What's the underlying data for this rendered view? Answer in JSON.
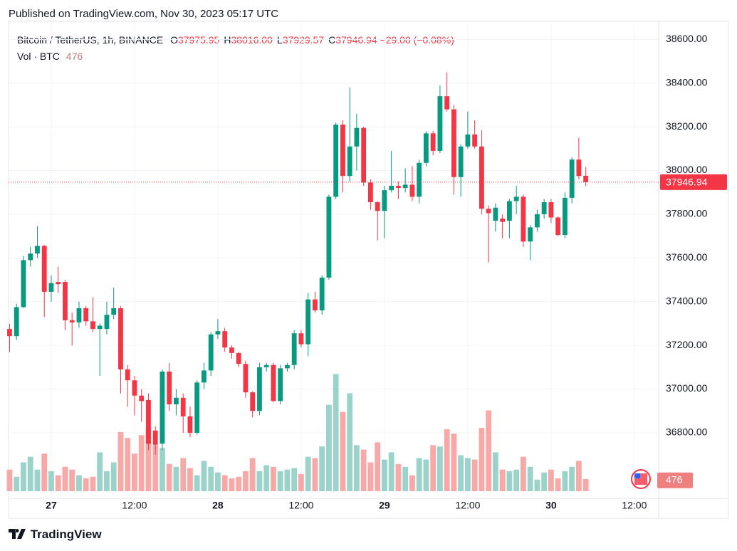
{
  "header": {
    "published": "Published on TradingView.com, Nov 30, 2023 05:17 UTC",
    "brand": "TradingView"
  },
  "chart_data": {
    "type": "candlestick",
    "symbol": "Bitcoin / TetherUS, 1h, BINANCE",
    "ohlc_legend": [
      {
        "label": "O",
        "value": "37975.95"
      },
      {
        "label": "H",
        "value": "38016.00"
      },
      {
        "label": "L",
        "value": "37929.57"
      },
      {
        "label": "C",
        "value": "37946.94"
      }
    ],
    "change": "−29.00 (−0.08%)",
    "volume_legend": {
      "label": "Vol · BTC",
      "value": "476"
    },
    "last_price": 37946.94,
    "last_price_label": "37946.94",
    "last_volume_label": "476",
    "up_color": "#089981",
    "down_color": "#f23645",
    "volume_up_color": "#9bd3ca",
    "volume_down_color": "#f7a9a8",
    "open": [
      37275,
      37242,
      37375,
      37590,
      37620,
      37655,
      37445,
      37490,
      37490,
      37315,
      37305,
      37370,
      37310,
      37275,
      37275,
      37340,
      37370,
      37090,
      37040,
      36970,
      36950,
      36810,
      36750,
      37080,
      36930,
      36960,
      36875,
      36800,
      37030,
      37085,
      37250,
      37265,
      37190,
      37165,
      37115,
      36985,
      36900,
      37100,
      37110,
      36945,
      37095,
      37110,
      37255,
      37205,
      37410,
      37360,
      37510,
      37880,
      38210,
      37975,
      38110,
      38195,
      37945,
      37855,
      37815,
      37910,
      37930,
      37920,
      37935,
      37880,
      38035,
      38170,
      38090,
      38340,
      38280,
      37970,
      38110,
      38165,
      38110,
      37825,
      37770,
      37780,
      37770,
      37860,
      37880,
      37675,
      37740,
      37800,
      37855,
      37785,
      37705,
      37875,
      38050,
      37975.95
    ],
    "high": [
      37298,
      37390,
      37610,
      37650,
      37745,
      37660,
      37520,
      37560,
      37500,
      37350,
      37400,
      37380,
      37420,
      37300,
      37400,
      37465,
      37380,
      37110,
      37060,
      37000,
      36980,
      36830,
      37090,
      37120,
      37000,
      36980,
      36920,
      37040,
      37120,
      37260,
      37320,
      37280,
      37200,
      37170,
      37130,
      36990,
      37120,
      37120,
      37120,
      37110,
      37120,
      37270,
      37270,
      37440,
      37445,
      37520,
      37890,
      38220,
      38230,
      38380,
      38260,
      38200,
      37960,
      37860,
      37930,
      38090,
      37950,
      38010,
      38020,
      38050,
      38180,
      38180,
      38390,
      38450,
      38300,
      38120,
      38270,
      38230,
      38185,
      37840,
      37850,
      37800,
      37870,
      37930,
      37890,
      37750,
      37820,
      37870,
      37870,
      37790,
      37900,
      38060,
      38150,
      38016.0
    ],
    "low": [
      37170,
      37225,
      37370,
      37560,
      37600,
      37330,
      37400,
      37440,
      37270,
      37200,
      37280,
      37290,
      37260,
      37060,
      37250,
      37320,
      36980,
      36920,
      36880,
      36850,
      36720,
      36700,
      36720,
      36900,
      36880,
      36800,
      36780,
      36790,
      37000,
      37060,
      37230,
      37170,
      37140,
      37100,
      36960,
      36870,
      36880,
      37080,
      36940,
      36930,
      37080,
      37090,
      37190,
      37150,
      37350,
      37340,
      37500,
      37870,
      37900,
      37950,
      38000,
      37930,
      37820,
      37680,
      37690,
      37900,
      37870,
      37900,
      37860,
      37850,
      38020,
      38070,
      38080,
      38270,
      37890,
      37880,
      38100,
      38100,
      37800,
      37580,
      37720,
      37690,
      37690,
      37800,
      37650,
      37590,
      37720,
      37780,
      37760,
      37700,
      37690,
      37850,
      37960,
      37929.57
    ],
    "close": [
      37242,
      37375,
      37590,
      37620,
      37655,
      37445,
      37485,
      37480,
      37315,
      37305,
      37370,
      37310,
      37275,
      37290,
      37340,
      37370,
      37090,
      37040,
      36970,
      36945,
      36750,
      36745,
      37080,
      36930,
      36960,
      36875,
      36800,
      37030,
      37085,
      37250,
      37265,
      37190,
      37165,
      37115,
      36985,
      36900,
      37100,
      37110,
      36945,
      37095,
      37110,
      37255,
      37205,
      37410,
      37360,
      37510,
      37880,
      38210,
      37975,
      38110,
      38195,
      37945,
      37855,
      37815,
      37910,
      37930,
      37920,
      37935,
      37880,
      38035,
      38170,
      38090,
      38340,
      38280,
      37970,
      38110,
      38165,
      38110,
      37825,
      37805,
      37830,
      37765,
      37860,
      37880,
      37675,
      37740,
      37800,
      37855,
      37785,
      37705,
      37875,
      38050,
      37975,
      37946.94
    ],
    "volume": [
      840,
      560,
      1120,
      1340,
      840,
      1460,
      780,
      620,
      950,
      840,
      620,
      500,
      560,
      1510,
      780,
      1120,
      2300,
      2070,
      1460,
      2180,
      2460,
      1790,
      1680,
      1060,
      950,
      1290,
      900,
      620,
      1180,
      950,
      730,
      620,
      500,
      560,
      780,
      1290,
      780,
      1010,
      950,
      780,
      840,
      900,
      670,
      1340,
      1290,
      1740,
      3360,
      4560,
      3080,
      3810,
      1790,
      1620,
      1120,
      1900,
      1230,
      1510,
      1060,
      950,
      620,
      1290,
      1230,
      1790,
      1740,
      2410,
      2240,
      1400,
      1290,
      1230,
      2460,
      3140,
      1510,
      840,
      780,
      840,
      1340,
      950,
      450,
      730,
      840,
      500,
      780,
      950,
      1180,
      476
    ],
    "xlim": [
      -0.15,
      93.5
    ],
    "ylim": [
      36500,
      38650
    ],
    "vlim": [
      0,
      18000
    ],
    "yticks": [
      {
        "value": 36800,
        "label": "36800.00"
      },
      {
        "value": 37000,
        "label": "37000.00"
      },
      {
        "value": 37200,
        "label": "37200.00"
      },
      {
        "value": 37400,
        "label": "37400.00"
      },
      {
        "value": 37600,
        "label": "37600.00"
      },
      {
        "value": 37800,
        "label": "37800.00"
      },
      {
        "value": 38000,
        "label": "38000.00"
      },
      {
        "value": 38200,
        "label": "38200.00"
      },
      {
        "value": 38400,
        "label": "38400.00"
      },
      {
        "value": 38600,
        "label": "38600.00"
      }
    ],
    "xticks": [
      {
        "value": 6,
        "label": "27"
      },
      {
        "value": 18,
        "label": "12:00"
      },
      {
        "value": 30,
        "label": "28"
      },
      {
        "value": 42,
        "label": "12:00"
      },
      {
        "value": 54,
        "label": "29"
      },
      {
        "value": 66,
        "label": "12:00"
      },
      {
        "value": 78,
        "label": "30"
      },
      {
        "value": 90,
        "label": "12:00"
      }
    ],
    "grid": true
  }
}
